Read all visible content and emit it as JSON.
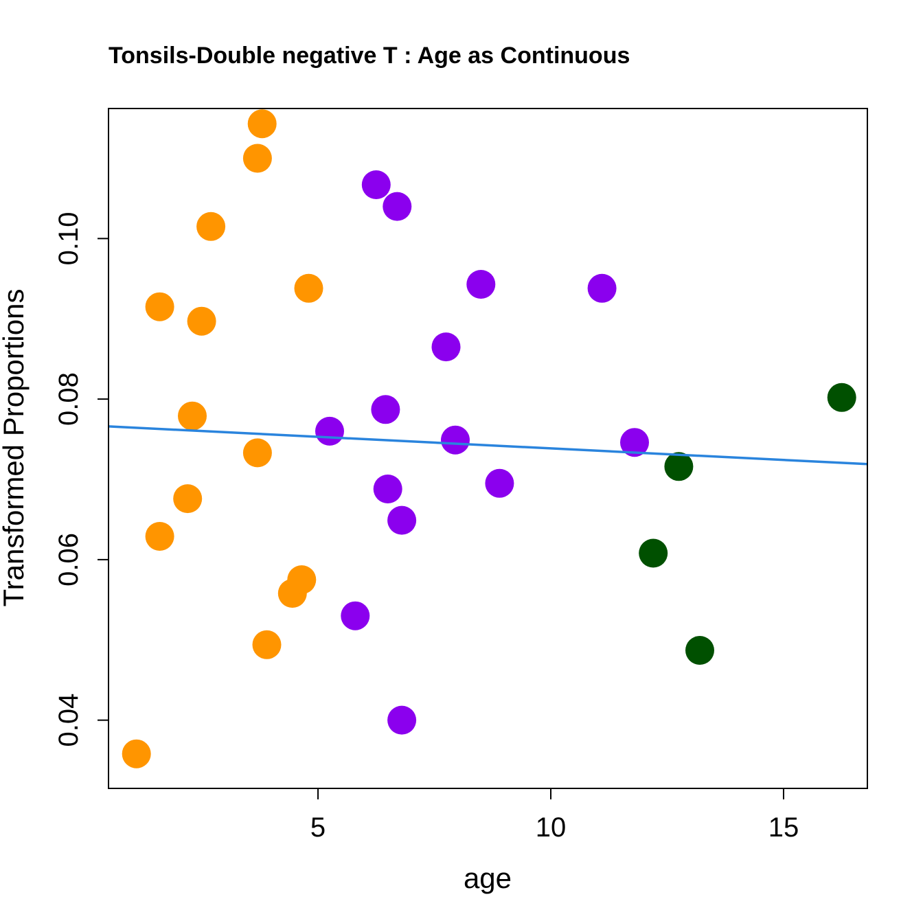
{
  "chart_data": {
    "type": "scatter",
    "title": "Tonsils-Double negative T : Age as Continuous",
    "xlabel": "age",
    "ylabel": "Transformed Proportions",
    "xlim": [
      0.5,
      16.8
    ],
    "ylim": [
      0.0315,
      0.1162
    ],
    "x_ticks": [
      5,
      10,
      15
    ],
    "y_ticks": [
      0.04,
      0.06,
      0.08,
      0.1
    ],
    "x_tick_labels": [
      "5",
      "10",
      "15"
    ],
    "y_tick_labels": [
      "0.04",
      "0.06",
      "0.08",
      "0.10"
    ],
    "colors": {
      "orange": "#FF9500",
      "purple": "#8B00EE",
      "green": "#005000",
      "fit_line": "#2A84DD"
    },
    "series": [
      {
        "name": "orange",
        "color": "#FF9500",
        "points": [
          {
            "x": 1.1,
            "y": 0.0358
          },
          {
            "x": 1.6,
            "y": 0.0629
          },
          {
            "x": 1.6,
            "y": 0.0915
          },
          {
            "x": 2.2,
            "y": 0.0676
          },
          {
            "x": 2.3,
            "y": 0.0779
          },
          {
            "x": 2.5,
            "y": 0.0897
          },
          {
            "x": 2.7,
            "y": 0.1015
          },
          {
            "x": 3.7,
            "y": 0.11
          },
          {
            "x": 3.8,
            "y": 0.1143
          },
          {
            "x": 3.7,
            "y": 0.0733
          },
          {
            "x": 3.9,
            "y": 0.0494
          },
          {
            "x": 4.45,
            "y": 0.0558
          },
          {
            "x": 4.65,
            "y": 0.0575
          },
          {
            "x": 4.8,
            "y": 0.0938
          }
        ]
      },
      {
        "name": "purple",
        "color": "#8B00EE",
        "points": [
          {
            "x": 5.25,
            "y": 0.076
          },
          {
            "x": 5.8,
            "y": 0.053
          },
          {
            "x": 6.25,
            "y": 0.1067
          },
          {
            "x": 6.45,
            "y": 0.0787
          },
          {
            "x": 6.5,
            "y": 0.0688
          },
          {
            "x": 6.7,
            "y": 0.104
          },
          {
            "x": 6.8,
            "y": 0.0649
          },
          {
            "x": 6.8,
            "y": 0.04
          },
          {
            "x": 7.75,
            "y": 0.0865
          },
          {
            "x": 7.95,
            "y": 0.0749
          },
          {
            "x": 8.5,
            "y": 0.0943
          },
          {
            "x": 8.9,
            "y": 0.0695
          },
          {
            "x": 11.1,
            "y": 0.0938
          },
          {
            "x": 11.8,
            "y": 0.0746
          }
        ]
      },
      {
        "name": "green",
        "color": "#005000",
        "points": [
          {
            "x": 12.2,
            "y": 0.0608
          },
          {
            "x": 12.75,
            "y": 0.0716
          },
          {
            "x": 13.2,
            "y": 0.0487
          },
          {
            "x": 16.25,
            "y": 0.0802
          }
        ]
      }
    ],
    "fit_line": {
      "color": "#2A84DD",
      "x": [
        0.5,
        16.8
      ],
      "y": [
        0.0766,
        0.0719
      ]
    }
  }
}
